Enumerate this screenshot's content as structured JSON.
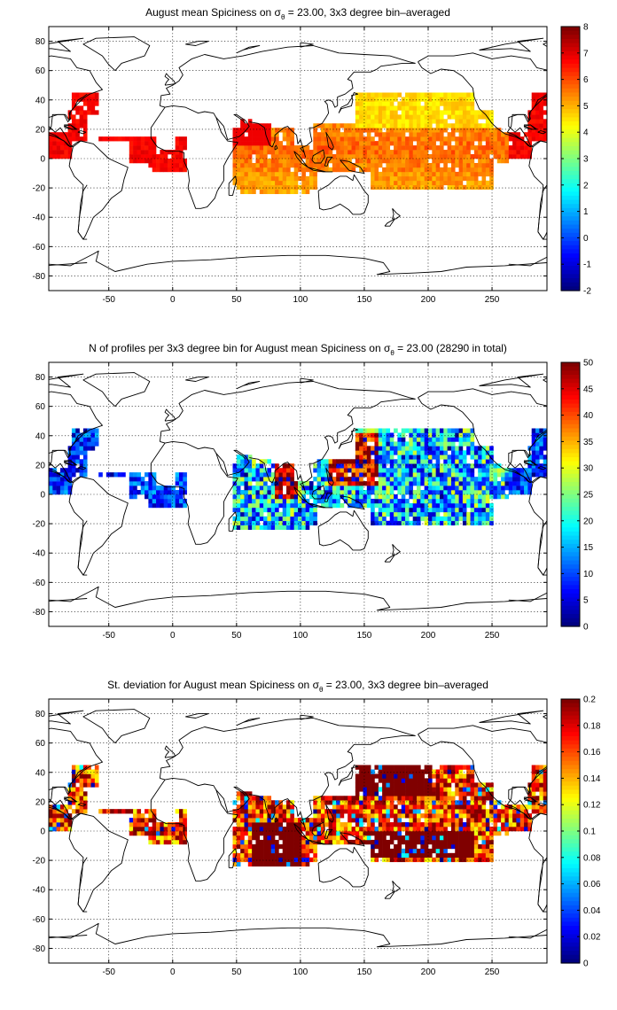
{
  "chart_data": [
    {
      "type": "heatmap",
      "title_pre": "August mean Spiciness on σ",
      "title_sub": "θ",
      "title_post": " = 23.00, 3x3 degree bin–averaged",
      "x_ticks": [
        "-50",
        "0",
        "50",
        "100",
        "150",
        "200",
        "250"
      ],
      "y_ticks": [
        "80",
        "60",
        "40",
        "20",
        "0",
        "-20",
        "-40",
        "-60",
        "-80"
      ],
      "xlim": [
        -97,
        293
      ],
      "ylim": [
        -90,
        90
      ],
      "colorbar_ticks": [
        "8",
        "7",
        "6",
        "5",
        "4",
        "3",
        "2",
        "1",
        "0",
        "-1",
        "-2"
      ],
      "clim": [
        -2,
        8
      ],
      "colormap": "jet"
    },
    {
      "type": "heatmap",
      "title_pre": "N of profiles per 3x3 degree bin for August mean Spiciness on σ",
      "title_sub": "θ",
      "title_post": " = 23.00 (28290 in total)",
      "x_ticks": [
        "-50",
        "0",
        "50",
        "100",
        "150",
        "200",
        "250"
      ],
      "y_ticks": [
        "80",
        "60",
        "40",
        "20",
        "0",
        "-20",
        "-40",
        "-60",
        "-80"
      ],
      "xlim": [
        -97,
        293
      ],
      "ylim": [
        -90,
        90
      ],
      "colorbar_ticks": [
        "50",
        "45",
        "40",
        "35",
        "30",
        "25",
        "20",
        "15",
        "10",
        "5",
        "0"
      ],
      "clim": [
        0,
        50
      ],
      "colormap": "jet"
    },
    {
      "type": "heatmap",
      "title_pre": "St. deviation for August mean Spiciness on σ",
      "title_sub": "θ",
      "title_post": " = 23.00, 3x3 degree bin–averaged",
      "x_ticks": [
        "-50",
        "0",
        "50",
        "100",
        "150",
        "200",
        "250"
      ],
      "y_ticks": [
        "80",
        "60",
        "40",
        "20",
        "0",
        "-20",
        "-40",
        "-60",
        "-80"
      ],
      "xlim": [
        -97,
        293
      ],
      "ylim": [
        -90,
        90
      ],
      "colorbar_ticks": [
        "0.2",
        "0.18",
        "0.16",
        "0.14",
        "0.12",
        "0.1",
        "0.08",
        "0.06",
        "0.04",
        "0.02",
        "0"
      ],
      "clim": [
        0,
        0.2
      ],
      "colormap": "jet"
    }
  ]
}
